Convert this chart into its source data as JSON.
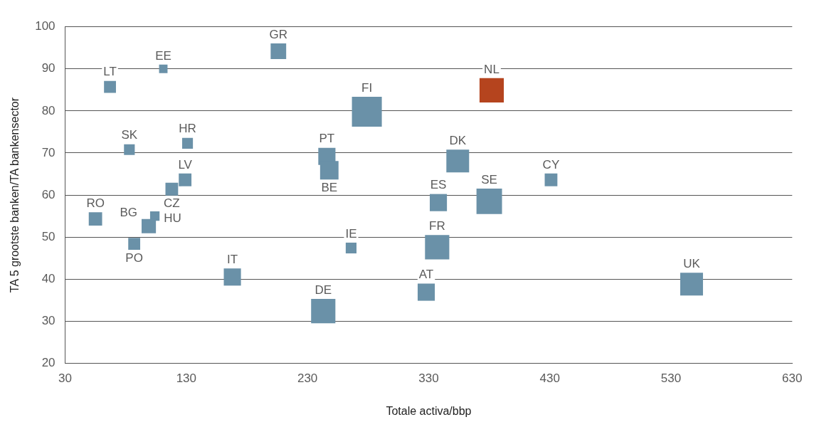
{
  "chart_data": {
    "type": "bubble",
    "xlabel": "Totale activa/bbp",
    "ylabel": "TA 5 grootste banken/TA bankensector",
    "x": [
      206,
      111,
      67,
      382,
      279,
      83,
      131,
      246,
      248,
      354,
      129,
      431,
      118,
      338,
      380,
      55,
      104,
      99,
      87,
      266,
      337,
      168,
      547,
      328,
      243
    ],
    "values": [
      94.2,
      90,
      85.7,
      84.9,
      79.8,
      70.8,
      72.3,
      69.2,
      65.9,
      68.1,
      63.6,
      63.6,
      61.4,
      58.2,
      58.5,
      54.3,
      55,
      52.6,
      48.4,
      47.4,
      47.6,
      40.5,
      38.8,
      36.9,
      32.4
    ],
    "sizes": [
      0.27,
      0.08,
      0.16,
      0.66,
      1,
      0.13,
      0.13,
      0.33,
      0.38,
      0.58,
      0.18,
      0.18,
      0.18,
      0.33,
      0.73,
      0.2,
      0.1,
      0.23,
      0.16,
      0.13,
      0.66,
      0.33,
      0.58,
      0.33,
      0.66
    ],
    "value_labels": [
      "GR",
      "EE",
      "LT",
      "NL",
      "FI",
      "SK",
      "HR",
      "PT",
      "BE",
      "DK",
      "LV",
      "CY",
      "CZ",
      "ES",
      "SE",
      "RO",
      "HU",
      "BG",
      "PO",
      "IE",
      "FR",
      "IT",
      "UK",
      "AT",
      "DE"
    ],
    "colors": [
      "#6a91a8",
      "#6a91a8",
      "#6a91a8",
      "#b5441e",
      "#6a91a8",
      "#6a91a8",
      "#6a91a8",
      "#6a91a8",
      "#6a91a8",
      "#6a91a8",
      "#6a91a8",
      "#6a91a8",
      "#6a91a8",
      "#6a91a8",
      "#6a91a8",
      "#6a91a8",
      "#6a91a8",
      "#6a91a8",
      "#6a91a8",
      "#6a91a8",
      "#6a91a8",
      "#6a91a8",
      "#6a91a8",
      "#6a91a8",
      "#6a91a8"
    ],
    "marker": "square",
    "xlim": [
      30,
      630
    ],
    "xticks": [
      30,
      130,
      230,
      330,
      430,
      530,
      630
    ],
    "ylim": [
      20,
      100
    ],
    "yticks": [
      20,
      30,
      40,
      50,
      60,
      70,
      80,
      90,
      100
    ],
    "grid": "y",
    "legend": false
  }
}
